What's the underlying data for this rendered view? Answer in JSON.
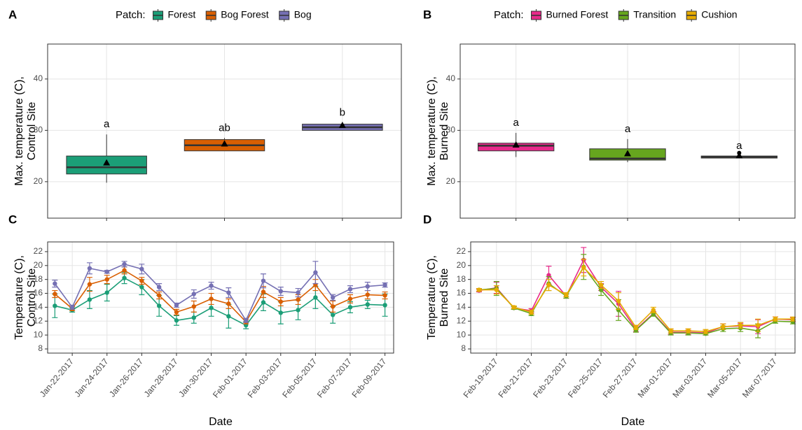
{
  "chart_data": [
    {
      "type": "box",
      "panel_label": "A",
      "legend_title": "Patch:",
      "categories": [
        "Forest",
        "Bog Forest",
        "Bog"
      ],
      "colors": [
        "#1b9e77",
        "#d95f02",
        "#7570b3"
      ],
      "boxes": [
        {
          "min": 19.8,
          "q1": 21.5,
          "median": 22.8,
          "q3": 25.0,
          "max": 29.2,
          "mean": 23.7
        },
        {
          "min": 26.0,
          "q1": 26.0,
          "median": 27.1,
          "q3": 28.2,
          "max": 28.5,
          "mean": 27.4
        },
        {
          "min": 30.0,
          "q1": 30.0,
          "median": 30.6,
          "q3": 31.2,
          "max": 31.5,
          "mean": 31.0
        }
      ],
      "outliers": [
        [],
        [],
        []
      ],
      "letters": [
        "a",
        "ab",
        "b"
      ],
      "y_label": [
        "Max. temperature (C),",
        "Control Site"
      ],
      "ylim": [
        12.9,
        46.8
      ],
      "yticks": [
        20,
        30,
        40
      ],
      "grid": true
    },
    {
      "type": "box",
      "panel_label": "B",
      "legend_title": "Patch:",
      "categories": [
        "Burned Forest",
        "Transition",
        "Cushion"
      ],
      "colors": [
        "#e7298a",
        "#66a61e",
        "#e6ab02"
      ],
      "boxes": [
        {
          "min": 24.8,
          "q1": 26.0,
          "median": 27.0,
          "q3": 27.5,
          "max": 29.5,
          "mean": 27.2
        },
        {
          "min": 23.8,
          "q1": 24.2,
          "median": 24.5,
          "q3": 26.4,
          "max": 28.3,
          "mean": 25.5
        },
        {
          "min": 24.6,
          "q1": 24.6,
          "median": 24.8,
          "q3": 25.0,
          "max": 25.0,
          "mean": 25.1
        }
      ],
      "outliers": [
        [],
        [],
        [
          25.6
        ]
      ],
      "letters": [
        "a",
        "a",
        "a"
      ],
      "y_label": [
        "Max. temperature (C),",
        "Burned Site"
      ],
      "ylim": [
        12.9,
        46.8
      ],
      "yticks": [
        20,
        30,
        40
      ],
      "grid": true
    },
    {
      "type": "line",
      "panel_label": "C",
      "x": [
        "2017-01-21",
        "2017-01-22",
        "2017-01-23",
        "2017-01-24",
        "2017-01-25",
        "2017-01-26",
        "2017-01-27",
        "2017-01-28",
        "2017-01-29",
        "2017-01-30",
        "2017-01-31",
        "2017-02-01",
        "2017-02-02",
        "2017-02-03",
        "2017-02-04",
        "2017-02-05",
        "2017-02-06",
        "2017-02-07",
        "2017-02-08",
        "2017-02-09"
      ],
      "series": [
        {
          "name": "Forest",
          "color": "#1b9e77",
          "values": [
            14.2,
            13.6,
            15.1,
            16.1,
            18.2,
            16.9,
            14.2,
            12.1,
            12.5,
            13.9,
            12.7,
            11.4,
            14.7,
            13.2,
            13.6,
            15.4,
            12.9,
            14.0,
            14.4,
            14.3
          ],
          "errors": [
            1.7,
            0.3,
            1.3,
            1.2,
            0.8,
            1.1,
            1.5,
            0.7,
            0.8,
            1.2,
            1.7,
            0.5,
            1.2,
            1.6,
            1.4,
            1.6,
            1.2,
            0.8,
            0.6,
            1.6
          ]
        },
        {
          "name": "Bog Forest",
          "color": "#d95f02",
          "values": [
            15.9,
            13.8,
            17.3,
            18.0,
            19.3,
            17.8,
            15.7,
            13.3,
            14.1,
            15.2,
            14.5,
            11.9,
            16.2,
            14.8,
            15.1,
            17.2,
            14.1,
            15.2,
            15.8,
            15.7
          ],
          "errors": [
            0.5,
            0.3,
            1.0,
            0.6,
            0.5,
            0.5,
            0.5,
            0.4,
            0.8,
            0.8,
            0.7,
            0.3,
            0.8,
            0.6,
            0.7,
            0.8,
            0.8,
            0.6,
            0.6,
            0.5
          ]
        },
        {
          "name": "Bog",
          "color": "#7570b3",
          "values": [
            17.4,
            14.0,
            19.6,
            19.1,
            20.2,
            19.5,
            16.9,
            14.3,
            15.9,
            17.1,
            16.1,
            12.1,
            17.8,
            16.3,
            16.1,
            19.0,
            15.4,
            16.6,
            17.0,
            17.2
          ],
          "errors": [
            0.5,
            0.3,
            0.8,
            0.2,
            0.4,
            0.7,
            0.5,
            0.3,
            0.6,
            0.5,
            0.7,
            0.3,
            1.0,
            0.6,
            0.6,
            1.6,
            0.4,
            0.5,
            0.6,
            0.3
          ]
        }
      ],
      "x_label": "Date",
      "y_label": [
        "Temperature (C),",
        "Control Site"
      ],
      "xlim": [
        "2017-01-20T14:00Z",
        "2017-02-09T12:00Z"
      ],
      "xticks": [
        {
          "value": "2017-01-22",
          "label": "Jan-22-2017"
        },
        {
          "value": "2017-01-24",
          "label": "Jan-24-2017"
        },
        {
          "value": "2017-01-26",
          "label": "Jan-26-2017"
        },
        {
          "value": "2017-01-28",
          "label": "Jan-28-2017"
        },
        {
          "value": "2017-01-30",
          "label": "Jan-30-2017"
        },
        {
          "value": "2017-02-01",
          "label": "Feb-01-2017"
        },
        {
          "value": "2017-02-03",
          "label": "Feb-03-2017"
        },
        {
          "value": "2017-02-05",
          "label": "Feb-05-2017"
        },
        {
          "value": "2017-02-07",
          "label": "Feb-07-2017"
        },
        {
          "value": "2017-02-09",
          "label": "Feb-09-2017"
        }
      ],
      "ylim": [
        7.4,
        23.4
      ],
      "yticks": [
        8,
        10,
        12,
        14,
        16,
        18,
        20,
        22
      ],
      "grid": true
    },
    {
      "type": "line",
      "panel_label": "D",
      "x": [
        "2017-02-18",
        "2017-02-19",
        "2017-02-20",
        "2017-02-21",
        "2017-02-22",
        "2017-02-23",
        "2017-02-24",
        "2017-02-25",
        "2017-02-26",
        "2017-02-27",
        "2017-02-28",
        "2017-03-01",
        "2017-03-02",
        "2017-03-03",
        "2017-03-04",
        "2017-03-05",
        "2017-03-06",
        "2017-03-07",
        "2017-03-08"
      ],
      "series": [
        {
          "name": "Burned Forest",
          "color": "#e7298a",
          "values": [
            16.4,
            16.8,
            13.9,
            13.5,
            18.6,
            15.6,
            20.8,
            16.9,
            14.5,
            10.8,
            13.1,
            10.4,
            10.4,
            10.3,
            11.2,
            11.3,
            11.2,
            12.3,
            12.2
          ],
          "errors": [
            0.2,
            0.8,
            0.2,
            0.3,
            1.3,
            0.3,
            1.8,
            0.5,
            1.8,
            0.3,
            0.3,
            0.3,
            0.3,
            0.3,
            0.4,
            0.4,
            1.0,
            0.3,
            0.3
          ]
        },
        {
          "name": "Transition",
          "color": "#66a61e",
          "values": [
            16.5,
            16.7,
            13.9,
            13.1,
            17.4,
            15.6,
            19.8,
            16.5,
            13.6,
            10.7,
            13.0,
            10.3,
            10.3,
            10.2,
            10.9,
            11.0,
            10.6,
            12.0,
            11.9
          ],
          "errors": [
            0.2,
            1.0,
            0.2,
            0.3,
            1.0,
            0.3,
            1.8,
            0.8,
            1.5,
            0.3,
            0.3,
            0.3,
            0.3,
            0.2,
            0.4,
            0.5,
            1.0,
            0.3,
            0.3
          ]
        },
        {
          "name": "Cushion",
          "color": "#e6ab02",
          "values": [
            16.5,
            16.5,
            14.0,
            13.3,
            17.2,
            15.8,
            19.7,
            17.2,
            14.9,
            11.1,
            13.6,
            10.6,
            10.6,
            10.5,
            11.2,
            11.4,
            11.4,
            12.3,
            12.3
          ],
          "errors": [
            0.2,
            0.6,
            0.2,
            0.3,
            0.8,
            0.3,
            1.2,
            0.5,
            1.2,
            0.3,
            0.4,
            0.3,
            0.3,
            0.3,
            0.4,
            0.4,
            0.9,
            0.3,
            0.3
          ]
        }
      ],
      "x_label": "Date",
      "y_label": [
        "Temperature (C),",
        "Burned Site"
      ],
      "xlim": [
        "2017-02-17T12:30Z",
        "2017-03-08T03:00Z"
      ],
      "xticks": [
        {
          "value": "2017-02-19",
          "label": "Feb-19-2017"
        },
        {
          "value": "2017-02-21",
          "label": "Feb-21-2017"
        },
        {
          "value": "2017-02-23",
          "label": "Feb-23-2017"
        },
        {
          "value": "2017-02-25",
          "label": "Feb-25-2017"
        },
        {
          "value": "2017-02-27",
          "label": "Feb-27-2017"
        },
        {
          "value": "2017-03-01",
          "label": "Mar-01-2017"
        },
        {
          "value": "2017-03-03",
          "label": "Mar-03-2017"
        },
        {
          "value": "2017-03-05",
          "label": "Mar-05-2017"
        },
        {
          "value": "2017-03-07",
          "label": "Mar-07-2017"
        }
      ],
      "ylim": [
        7.4,
        23.4
      ],
      "yticks": [
        8,
        10,
        12,
        14,
        16,
        18,
        20,
        22
      ],
      "grid": true
    }
  ]
}
